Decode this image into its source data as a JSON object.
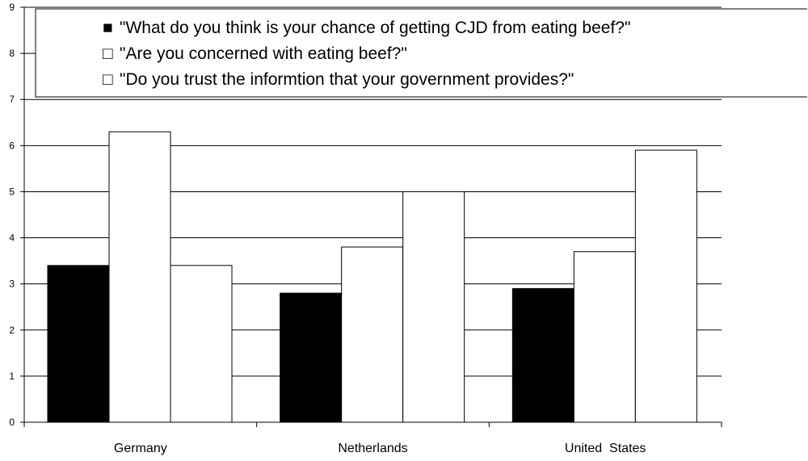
{
  "chart_data": {
    "type": "bar",
    "title": "",
    "xlabel": "",
    "ylabel": "",
    "categories": [
      "Germany",
      "Netherlands",
      "United  States"
    ],
    "series": [
      {
        "name": "\"What do you think is your chance of getting CJD from eating beef?\"",
        "values": [
          3.4,
          2.8,
          2.9
        ],
        "fill": "#000000",
        "legend_marker": "■"
      },
      {
        "name": "\"Are you concerned with eating beef?\"",
        "values": [
          6.3,
          3.8,
          3.7
        ],
        "fill": "#ffffff",
        "legend_marker": "□"
      },
      {
        "name": "\"Do you trust the informtion that your government provides?\"",
        "values": [
          3.4,
          5.0,
          5.9
        ],
        "fill": "#ffffff",
        "legend_marker": "□"
      }
    ],
    "ylim": [
      0,
      9
    ],
    "y_ticks": [
      0,
      1,
      2,
      3,
      4,
      5,
      6,
      7,
      8,
      9
    ],
    "grid": true,
    "legend_position": "top",
    "colors": {
      "axis": "#000000",
      "grid": "#000000",
      "background": "#ffffff"
    }
  }
}
